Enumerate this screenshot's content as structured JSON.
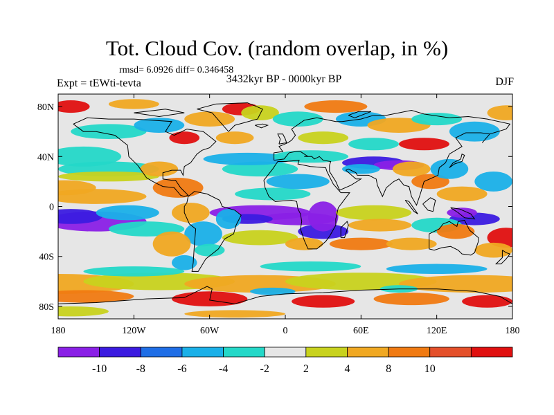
{
  "title": "Tot. Cloud Cov. (random overlap, in %)",
  "stats": "rmsd= 6.0926 diff= 0.346458",
  "experiment": "Expt = tEWti-tevta",
  "period": "3432kyr BP - 0000kyr BP",
  "season": "DJF",
  "map": {
    "lon_ticks": [
      "180",
      "120W",
      "60W",
      "0",
      "60E",
      "120E",
      "180"
    ],
    "lat_ticks": [
      "80N",
      "40N",
      "0",
      "40S",
      "80S"
    ]
  },
  "colorbar": {
    "labels": [
      "-10",
      "-8",
      "-6",
      "-4",
      "-2",
      "2",
      "4",
      "8",
      "10"
    ],
    "colors": [
      "#8a20e6",
      "#3b1be0",
      "#1f6ee6",
      "#1ab0e8",
      "#24d8c8",
      "#e6e6e6",
      "#c8d21e",
      "#f0a822",
      "#f07a12",
      "#e4502a",
      "#e01010"
    ]
  },
  "colors": {
    "background": "#e6e6e6",
    "coastline": "#000000"
  }
}
